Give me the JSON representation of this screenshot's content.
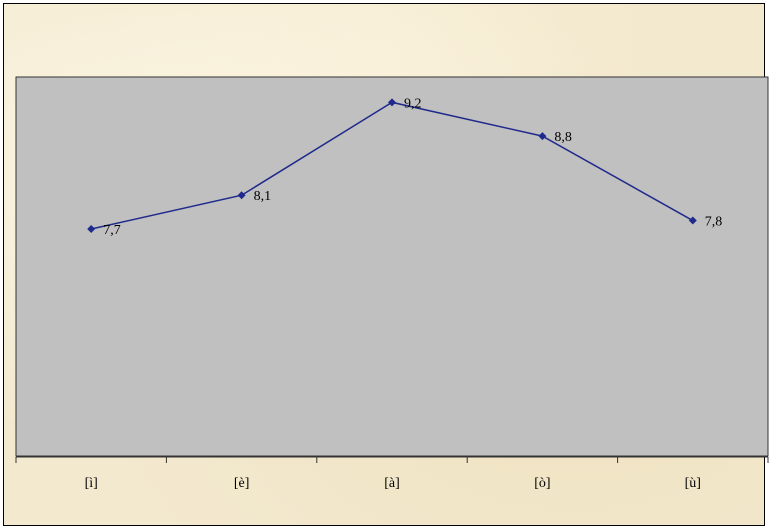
{
  "chart_data": {
    "type": "line",
    "categories": [
      "[ì]",
      "[è]",
      "[à]",
      "[ò]",
      "[ù]"
    ],
    "series": [
      {
        "values": [
          7.7,
          8.1,
          9.2,
          8.8,
          7.8
        ]
      }
    ],
    "data_labels": [
      "7,7",
      "8,1",
      "9,2",
      "8,8",
      "7,8"
    ],
    "title": "",
    "xlabel": "",
    "ylabel": "",
    "ylim": [
      5.0,
      9.5
    ],
    "grid": false,
    "legend": "none",
    "colors": {
      "plot_area": "#c0c0c0",
      "series_line": "#1f2a8c",
      "background": "#f3e9cf"
    }
  }
}
